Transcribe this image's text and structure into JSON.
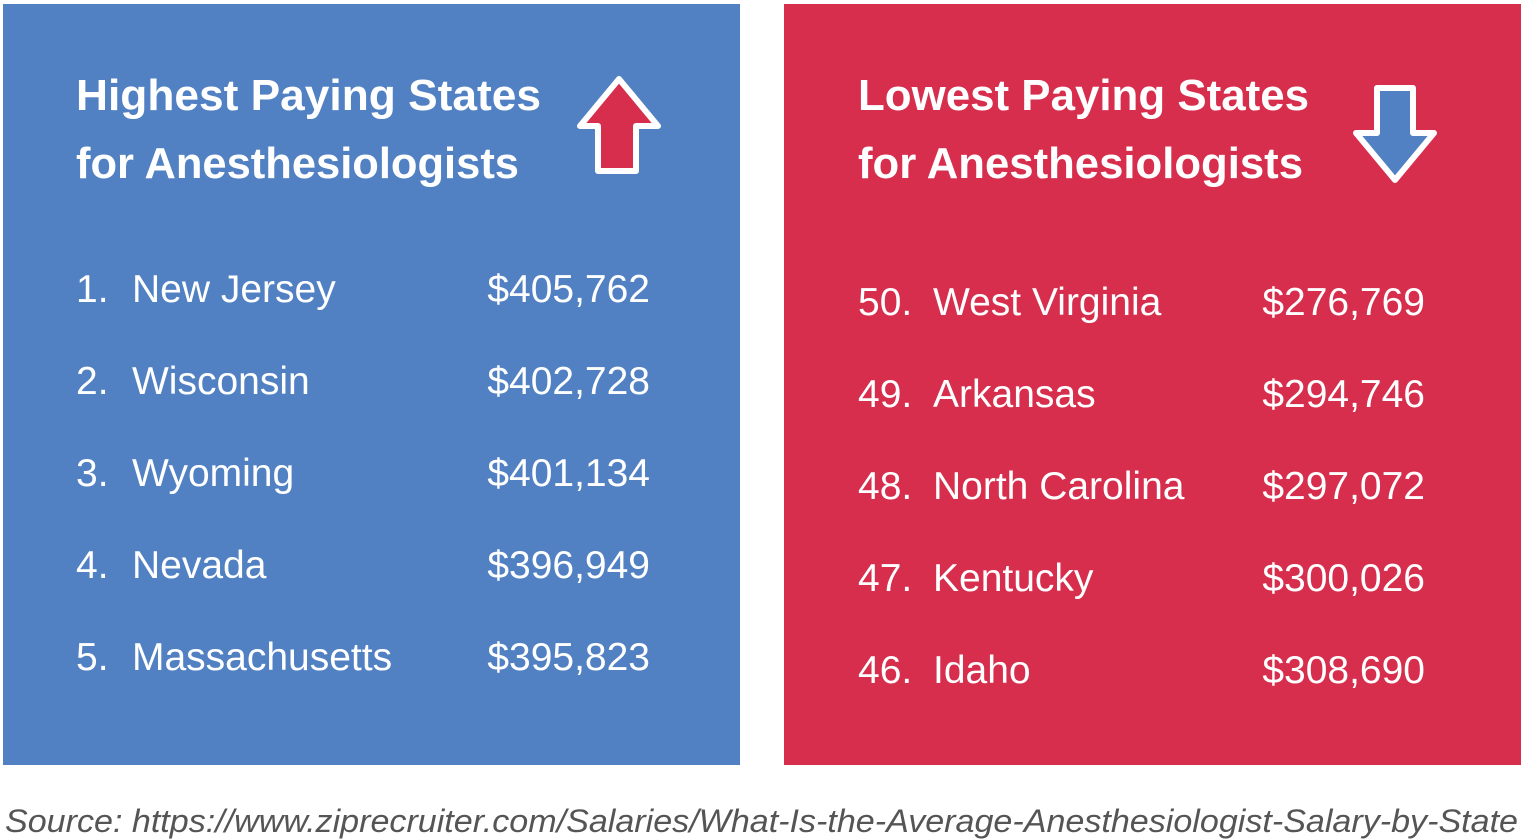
{
  "panels": [
    {
      "title": [
        "Highest Paying States",
        "for Anesthesiologists"
      ],
      "rows": [
        {
          "rank": "1.",
          "state": "New Jersey",
          "salary": "$405,762"
        },
        {
          "rank": "2.",
          "state": "Wisconsin",
          "salary": "$402,728"
        },
        {
          "rank": "3.",
          "state": "Wyoming",
          "salary": "$401,134"
        },
        {
          "rank": "4.",
          "state": "Nevada",
          "salary": "$396,949"
        },
        {
          "rank": "5.",
          "state": "Massachusetts",
          "salary": "$395,823"
        }
      ]
    },
    {
      "title": [
        "Lowest Paying States",
        "for Anesthesiologists"
      ],
      "rows": [
        {
          "rank": "50.",
          "state": "West Virginia",
          "salary": "$276,769"
        },
        {
          "rank": "49.",
          "state": "Arkansas",
          "salary": "$294,746"
        },
        {
          "rank": "48.",
          "state": "North Carolina",
          "salary": "$297,072"
        },
        {
          "rank": "47.",
          "state": "Kentucky",
          "salary": "$300,026"
        },
        {
          "rank": "46.",
          "state": "Idaho",
          "salary": "$308,690"
        }
      ]
    }
  ],
  "source": "Source: https://www.ziprecruiter.com/Salaries/What-Is-the-Average-Anesthesiologist-Salary-by-State"
}
